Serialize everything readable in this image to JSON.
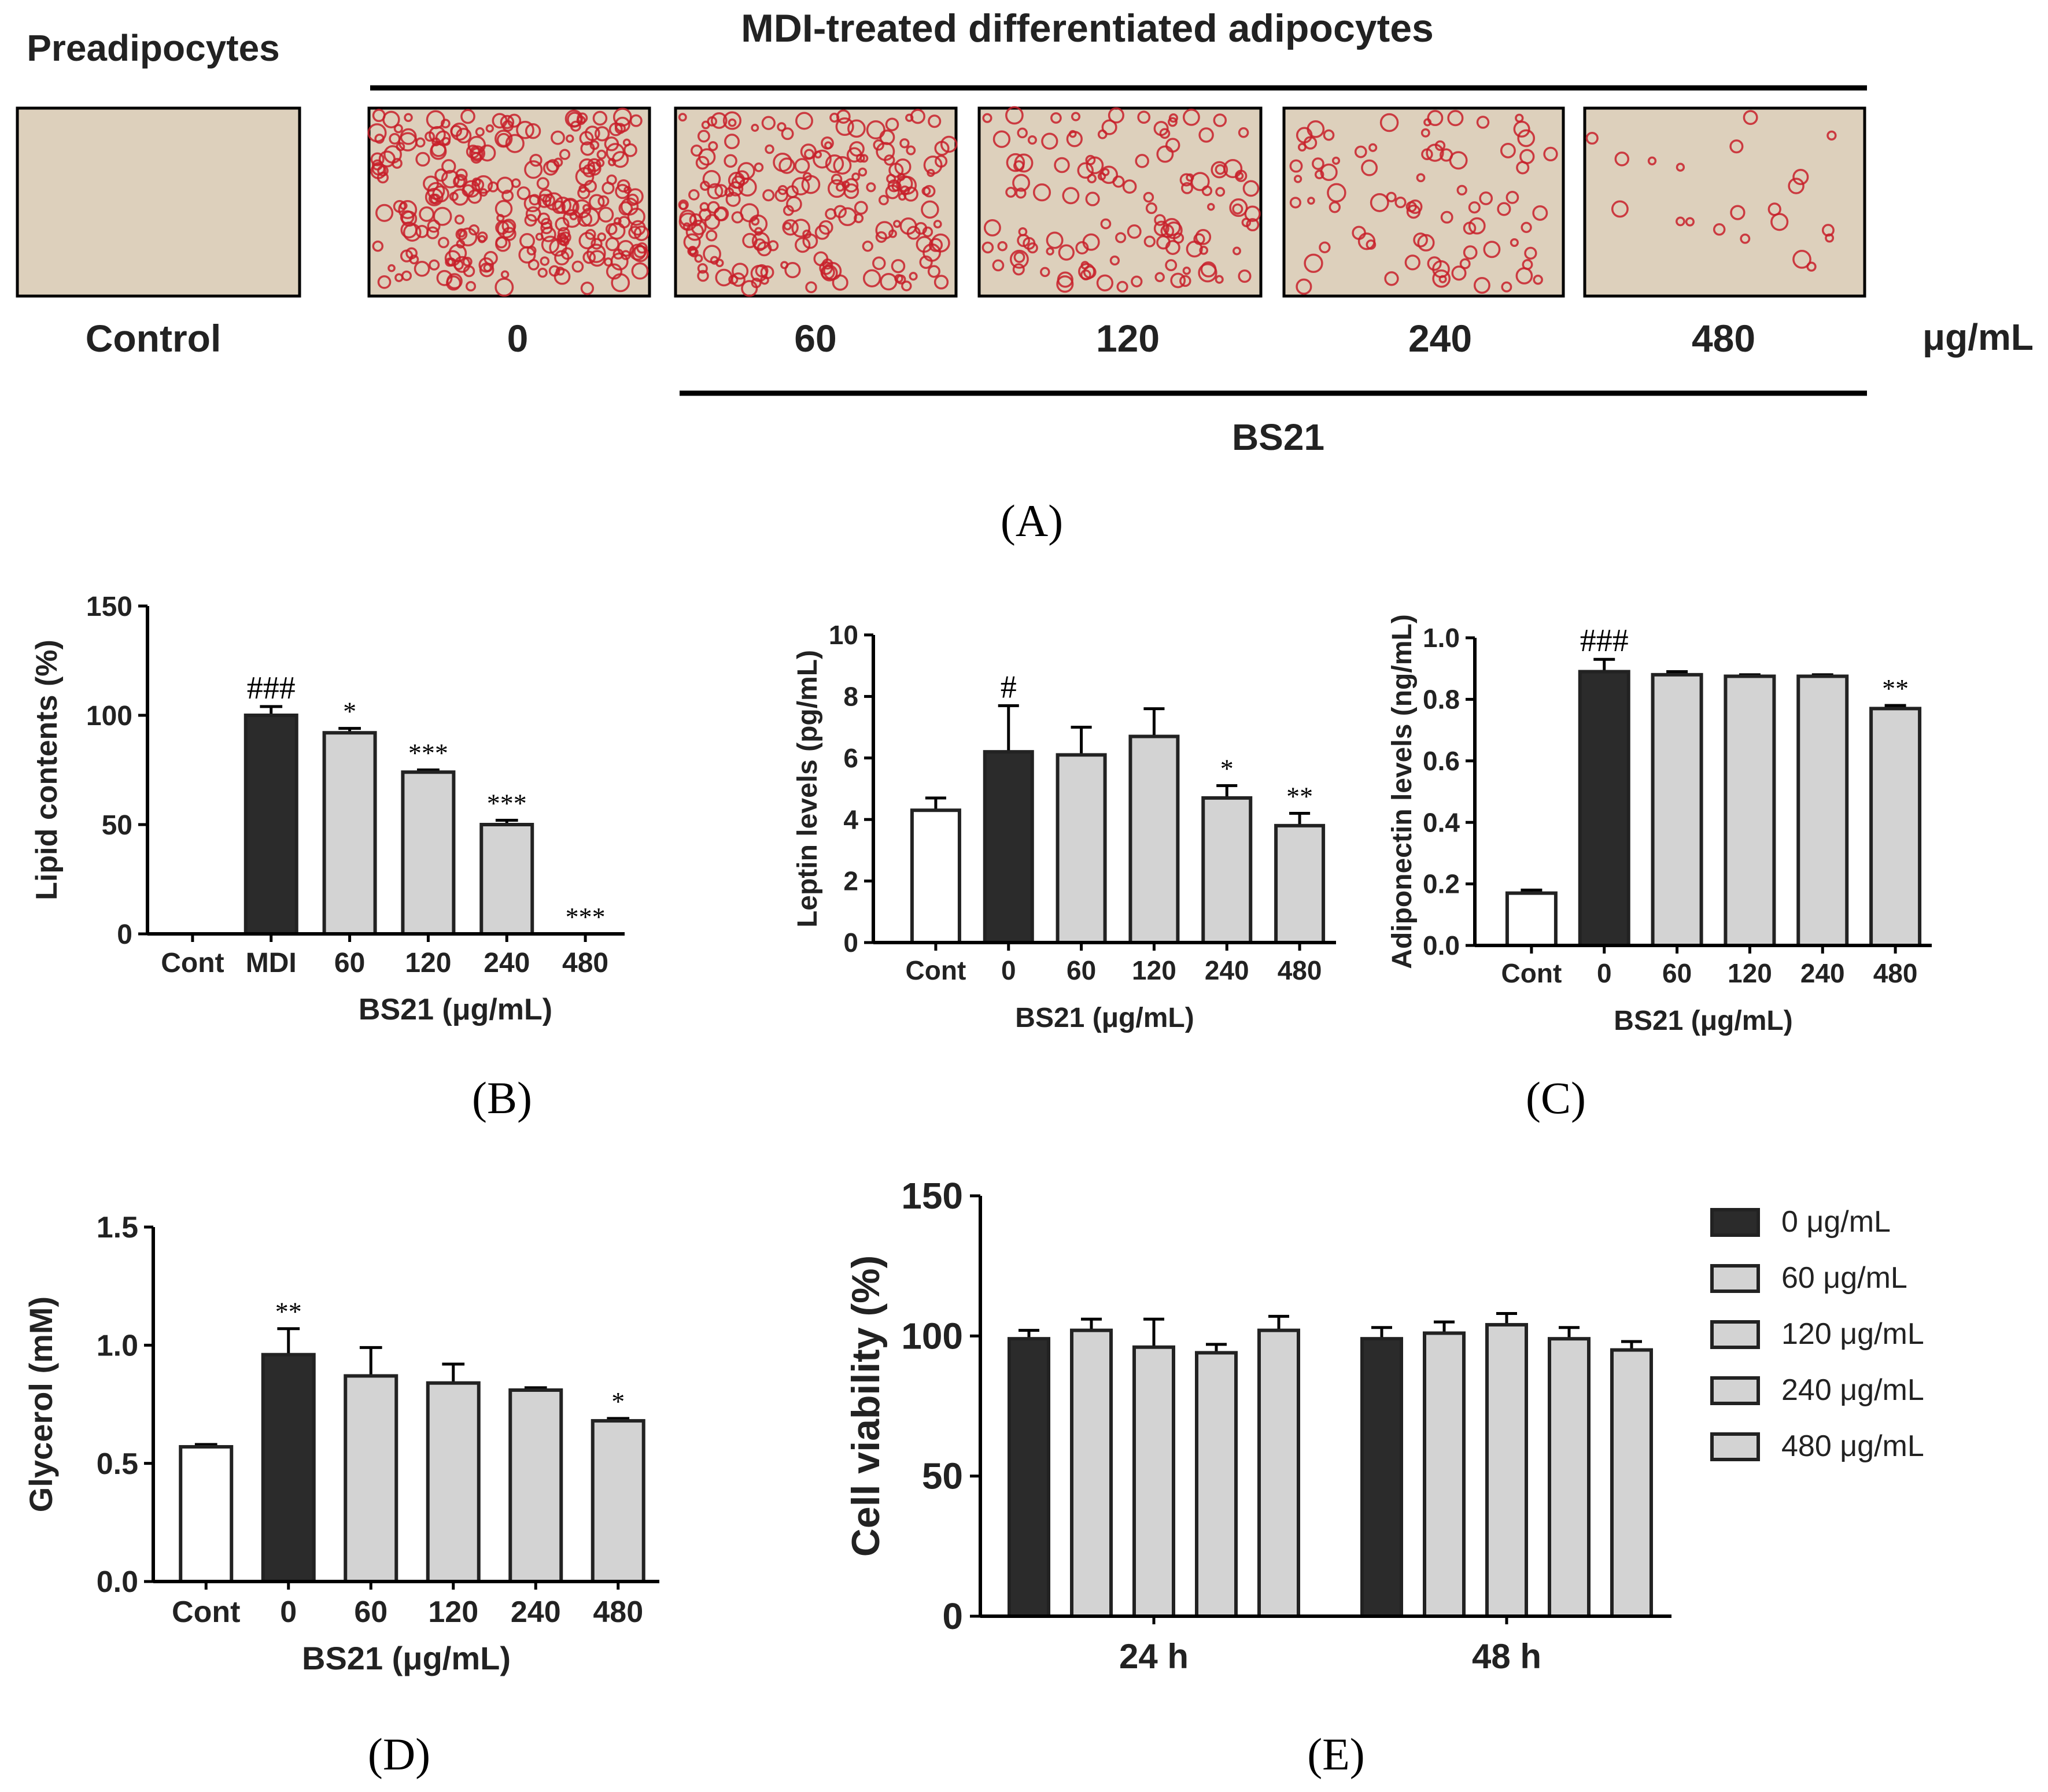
{
  "panel_a": {
    "label": "(A)",
    "preadipocytes": "Preadipocytes",
    "mdi_header": "MDI-treated differentiated adipocytes",
    "bs21_label": "BS21",
    "unit": "μg/mL",
    "images": [
      {
        "caption": "Control",
        "stain_density": 0.0
      },
      {
        "caption": "0",
        "stain_density": 1.0
      },
      {
        "caption": "60",
        "stain_density": 0.75
      },
      {
        "caption": "120",
        "stain_density": 0.45
      },
      {
        "caption": "240",
        "stain_density": 0.3
      },
      {
        "caption": "480",
        "stain_density": 0.08
      }
    ]
  },
  "colors": {
    "dark_bar": "#2b2b2b",
    "light_bar": "#d3d3d3",
    "white_bar": "#ffffff",
    "axis": "#000000",
    "stain": "#c8202a",
    "image_bg": "#ddd0bc"
  },
  "chart_data": [
    {
      "id": "B",
      "panel_label": "(B)",
      "type": "bar",
      "ylabel": "Lipid contents (%)",
      "xlabel": "BS21 (μg/mL)",
      "categories": [
        "Cont",
        "MDI",
        "60",
        "120",
        "240",
        "480"
      ],
      "values": [
        0,
        100,
        92,
        74,
        50,
        0
      ],
      "errors": [
        0,
        4,
        2,
        1,
        2,
        0
      ],
      "fills": [
        "white",
        "dark",
        "light",
        "light",
        "light",
        "light"
      ],
      "annotations": [
        "",
        "###",
        "*",
        "***",
        "***",
        "***"
      ],
      "ylim": [
        0,
        150
      ],
      "yticks": [
        "0",
        "50",
        "100",
        "150"
      ]
    },
    {
      "id": "C1",
      "panel_label": "(C)",
      "type": "bar",
      "ylabel": "Leptin levels (pg/mL)",
      "xlabel": "BS21 (μg/mL)",
      "categories": [
        "Cont",
        "0",
        "60",
        "120",
        "240",
        "480"
      ],
      "values": [
        4.3,
        6.2,
        6.1,
        6.7,
        4.7,
        3.8
      ],
      "errors": [
        0.4,
        1.5,
        0.9,
        0.9,
        0.4,
        0.4
      ],
      "fills": [
        "white",
        "dark",
        "light",
        "light",
        "light",
        "light"
      ],
      "annotations": [
        "",
        "#",
        "",
        "",
        "*",
        "**"
      ],
      "ylim": [
        0,
        10
      ],
      "yticks": [
        "0",
        "2",
        "4",
        "6",
        "8",
        "10"
      ]
    },
    {
      "id": "C2",
      "type": "bar",
      "ylabel": "Adiponectin levels (ng/mL)",
      "xlabel": "BS21 (μg/mL)",
      "categories": [
        "Cont",
        "0",
        "60",
        "120",
        "240",
        "480"
      ],
      "values": [
        0.17,
        0.89,
        0.88,
        0.875,
        0.875,
        0.77
      ],
      "errors": [
        0.01,
        0.04,
        0.01,
        0.005,
        0.005,
        0.01
      ],
      "fills": [
        "white",
        "dark",
        "light",
        "light",
        "light",
        "light"
      ],
      "annotations": [
        "",
        "###",
        "",
        "",
        "",
        "**"
      ],
      "ylim": [
        0,
        1.0
      ],
      "yticks": [
        "0.0",
        "0.2",
        "0.4",
        "0.6",
        "0.8",
        "1.0"
      ]
    },
    {
      "id": "D",
      "panel_label": "(D)",
      "type": "bar",
      "ylabel": "Glycerol (mM)",
      "xlabel": "BS21 (μg/mL)",
      "categories": [
        "Cont",
        "0",
        "60",
        "120",
        "240",
        "480"
      ],
      "values": [
        0.57,
        0.96,
        0.87,
        0.84,
        0.81,
        0.68
      ],
      "errors": [
        0.01,
        0.11,
        0.12,
        0.08,
        0.01,
        0.01
      ],
      "fills": [
        "white",
        "dark",
        "light",
        "light",
        "light",
        "light"
      ],
      "annotations": [
        "",
        "**",
        "",
        "",
        "",
        "*"
      ],
      "ylim": [
        0,
        1.5
      ],
      "yticks": [
        "0.0",
        "0.5",
        "1.0",
        "1.5"
      ]
    },
    {
      "id": "E",
      "panel_label": "(E)",
      "type": "bar",
      "ylabel": "Cell viability (%)",
      "xlabel": "",
      "categories": [
        "24 h",
        "48 h"
      ],
      "series": [
        {
          "name": "0 μg/mL",
          "fill": "dark",
          "values": [
            99,
            99
          ],
          "errors": [
            3,
            4
          ]
        },
        {
          "name": "60 μg/mL",
          "fill": "light",
          "values": [
            102,
            101
          ],
          "errors": [
            4,
            4
          ]
        },
        {
          "name": "120 μg/mL",
          "fill": "light",
          "values": [
            96,
            104
          ],
          "errors": [
            10,
            4
          ]
        },
        {
          "name": "240 μg/mL",
          "fill": "light",
          "values": [
            94,
            99
          ],
          "errors": [
            3,
            4
          ]
        },
        {
          "name": "480 μg/mL",
          "fill": "light",
          "values": [
            102,
            95
          ],
          "errors": [
            5,
            3
          ]
        }
      ],
      "ylim": [
        0,
        150
      ],
      "yticks": [
        "0",
        "50",
        "100",
        "150"
      ],
      "legend_position": "right"
    }
  ]
}
